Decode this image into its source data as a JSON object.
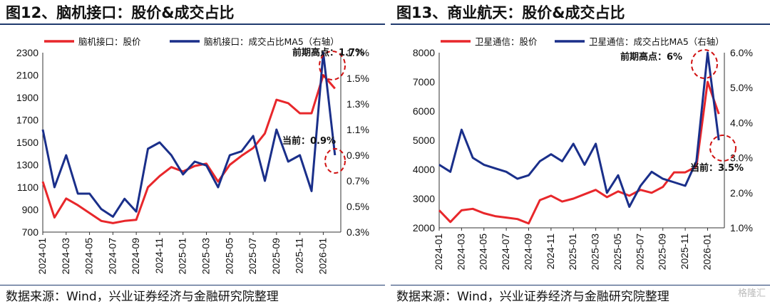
{
  "panels": [
    {
      "title": "图12、脑机接口：股价&成交占比",
      "source": "数据来源：Wind，兴业证券经济与金融研究院整理",
      "chart_data": {
        "type": "line",
        "x_ticks": [
          "2024-01",
          "2024-03",
          "2024-05",
          "2024-07",
          "2024-09",
          "2024-11",
          "2025-01",
          "2025-03",
          "2025-05",
          "2025-07",
          "2025-09",
          "2025-11",
          "2026-01"
        ],
        "y_left": {
          "min": 700,
          "max": 2300,
          "ticks": [
            "700",
            "900",
            "1100",
            "1300",
            "1500",
            "1700",
            "1900",
            "2100",
            "2300"
          ]
        },
        "y_right": {
          "min": 0.3,
          "max": 1.7,
          "ticks": [
            "0.3%",
            "0.5%",
            "0.7%",
            "0.9%",
            "1.1%",
            "1.3%",
            "1.5%",
            "1.7%"
          ]
        },
        "series": [
          {
            "name": "脑机接口：股价",
            "color": "#e8272b",
            "axis": "left",
            "x": [
              "2024-01",
              "2024-02",
              "2024-03",
              "2024-04",
              "2024-05",
              "2024-06",
              "2024-07",
              "2024-08",
              "2024-09",
              "2024-10",
              "2024-11",
              "2024-12",
              "2025-01",
              "2025-02",
              "2025-03",
              "2025-04",
              "2025-05",
              "2025-06",
              "2025-07",
              "2025-08",
              "2025-09",
              "2025-10",
              "2025-11",
              "2025-12",
              "2026-01",
              "2026-02"
            ],
            "values": [
              1150,
              830,
              1000,
              940,
              870,
              800,
              780,
              800,
              810,
              1100,
              1200,
              1280,
              1240,
              1290,
              1310,
              1150,
              1300,
              1380,
              1450,
              1580,
              1880,
              1850,
              1760,
              1760,
              2100,
              1980
            ]
          },
          {
            "name": "脑机接口：成交占比MA5（右轴）",
            "color": "#1a2f8a",
            "axis": "right",
            "x": [
              "2024-01",
              "2024-02",
              "2024-03",
              "2024-04",
              "2024-05",
              "2024-06",
              "2024-07",
              "2024-08",
              "2024-09",
              "2024-10",
              "2024-11",
              "2024-12",
              "2025-01",
              "2025-02",
              "2025-03",
              "2025-04",
              "2025-05",
              "2025-06",
              "2025-07",
              "2025-08",
              "2025-09",
              "2025-10",
              "2025-11",
              "2025-12",
              "2026-01",
              "2026-02"
            ],
            "values": [
              1.1,
              0.65,
              0.9,
              0.6,
              0.6,
              0.48,
              0.42,
              0.56,
              0.46,
              0.95,
              1.0,
              0.9,
              0.75,
              0.85,
              0.82,
              0.65,
              0.9,
              0.93,
              1.05,
              0.7,
              1.1,
              0.85,
              0.9,
              0.62,
              1.7,
              0.9
            ]
          }
        ],
        "annotations": [
          {
            "text": "前期高点：1.7%",
            "x": "2026-01",
            "axis": "right",
            "value": 1.7
          },
          {
            "text": "当前：0.9%",
            "x": "2026-02",
            "axis": "right",
            "value": 0.9
          }
        ],
        "legend": "top"
      }
    },
    {
      "title": "图13、商业航天：股价&成交占比",
      "source": "数据来源：Wind，兴业证券经济与金融研究院整理",
      "chart_data": {
        "type": "line",
        "x_ticks": [
          "2024-01",
          "2024-03",
          "2024-05",
          "2024-07",
          "2024-09",
          "2024-11",
          "2025-01",
          "2025-03",
          "2025-05",
          "2025-07",
          "2025-09",
          "2025-11",
          "2026-01"
        ],
        "y_left": {
          "min": 2000,
          "max": 8000,
          "ticks": [
            "2000",
            "3000",
            "4000",
            "5000",
            "6000",
            "7000",
            "8000"
          ]
        },
        "y_right": {
          "min": 1.0,
          "max": 6.0,
          "ticks": [
            "1.0%",
            "2.0%",
            "3.0%",
            "4.0%",
            "5.0%",
            "6.0%"
          ]
        },
        "series": [
          {
            "name": "卫星通信：股价",
            "color": "#e8272b",
            "axis": "left",
            "x": [
              "2024-01",
              "2024-02",
              "2024-03",
              "2024-04",
              "2024-05",
              "2024-06",
              "2024-07",
              "2024-08",
              "2024-09",
              "2024-10",
              "2024-11",
              "2024-12",
              "2025-01",
              "2025-02",
              "2025-03",
              "2025-04",
              "2025-05",
              "2025-06",
              "2025-07",
              "2025-08",
              "2025-09",
              "2025-10",
              "2025-11",
              "2025-12",
              "2026-01",
              "2026-02"
            ],
            "values": [
              2600,
              2200,
              2600,
              2650,
              2500,
              2400,
              2350,
              2300,
              2150,
              2950,
              3100,
              2900,
              3000,
              3150,
              3300,
              3050,
              3250,
              3100,
              3300,
              3200,
              3400,
              3900,
              3900,
              4100,
              7000,
              5900
            ]
          },
          {
            "name": "卫星通信：成交占比MA5（右轴）",
            "color": "#1a2f8a",
            "axis": "right",
            "x": [
              "2024-01",
              "2024-02",
              "2024-03",
              "2024-04",
              "2024-05",
              "2024-06",
              "2024-07",
              "2024-08",
              "2024-09",
              "2024-10",
              "2024-11",
              "2024-12",
              "2025-01",
              "2025-02",
              "2025-03",
              "2025-04",
              "2025-05",
              "2025-06",
              "2025-07",
              "2025-08",
              "2025-09",
              "2025-10",
              "2025-11",
              "2025-12",
              "2026-01",
              "2026-02"
            ],
            "values": [
              2.8,
              2.6,
              3.8,
              3.0,
              2.8,
              2.7,
              2.6,
              2.4,
              2.5,
              2.9,
              3.1,
              2.9,
              3.4,
              2.8,
              3.4,
              2.0,
              2.5,
              1.6,
              2.2,
              2.6,
              2.4,
              2.3,
              2.2,
              2.9,
              6.0,
              3.5
            ]
          }
        ],
        "annotations": [
          {
            "text": "前期高点：6%",
            "x": "2026-01",
            "axis": "right",
            "value": 6.0
          },
          {
            "text": "当前：3.5%",
            "x": "2026-02",
            "axis": "right",
            "value": 3.5
          }
        ],
        "legend": "top"
      }
    }
  ],
  "watermark": "格隆汇"
}
